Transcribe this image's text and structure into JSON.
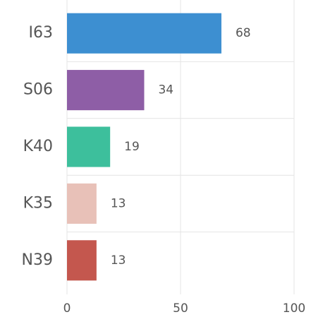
{
  "chart_data": {
    "type": "hbar",
    "categories": [
      "I63",
      "S06",
      "K40",
      "K35",
      "N39"
    ],
    "values": [
      68,
      34,
      19,
      13,
      13
    ],
    "colors": [
      "#3d8fd1",
      "#8e5ea6",
      "#3dbf9c",
      "#e8c1b8",
      "#c4574e"
    ],
    "xlim": [
      0,
      100
    ],
    "xticks": [
      0,
      50,
      100
    ],
    "grid": true
  }
}
